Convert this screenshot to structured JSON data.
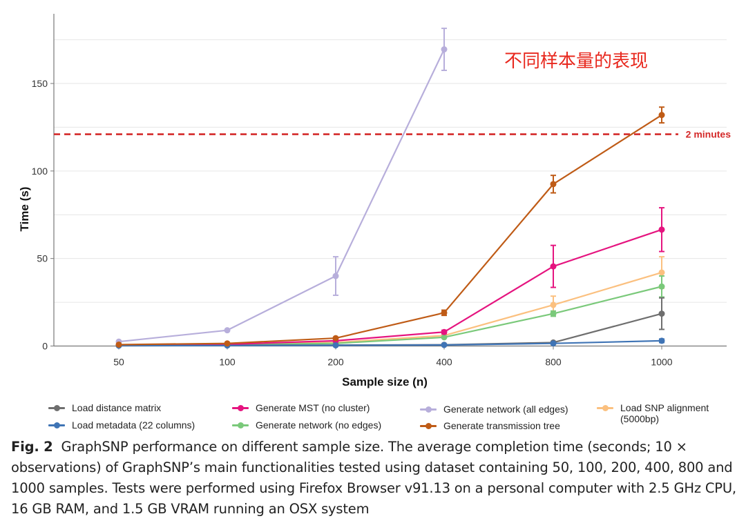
{
  "chart_data": {
    "type": "line",
    "title": "",
    "annotation": "不同样本量的表现",
    "xlabel": "Sample size (n)",
    "ylabel": "Time (s)",
    "categories": [
      "50",
      "100",
      "200",
      "400",
      "800",
      "1000"
    ],
    "ylim": [
      0,
      190
    ],
    "yticks": [
      0,
      50,
      100,
      150
    ],
    "reference_line": {
      "value": 121,
      "label": "2 minutes",
      "color": "#d42a2a"
    },
    "series": [
      {
        "name": "Load distance matrix",
        "color": "#6e6e6e",
        "values": [
          0.3,
          0.4,
          0.5,
          0.7,
          2,
          18.5
        ],
        "errors": [
          0.1,
          0.1,
          0.1,
          0.2,
          0.5,
          9
        ]
      },
      {
        "name": "Load metadata (22 columns)",
        "color": "#3f74b5",
        "values": [
          0.2,
          0.3,
          0.4,
          0.6,
          1.5,
          3
        ],
        "errors": [
          0.05,
          0.05,
          0.1,
          0.1,
          0.3,
          1
        ]
      },
      {
        "name": "Generate MST (no cluster)",
        "color": "#e5147f",
        "values": [
          0.5,
          1,
          3,
          8,
          45.5,
          66.5
        ],
        "errors": [
          0.1,
          0.2,
          0.5,
          1,
          12,
          12.5
        ]
      },
      {
        "name": "Generate network (no edges)",
        "color": "#7ac97a",
        "values": [
          0.4,
          0.8,
          1.5,
          5,
          18.5,
          34
        ],
        "errors": [
          0.1,
          0.1,
          0.3,
          0.5,
          1.5,
          6
        ]
      },
      {
        "name": "Generate network (all edges)",
        "color": "#b7aedb",
        "values": [
          2.5,
          9,
          40,
          169.5,
          null,
          null
        ],
        "errors": [
          0.3,
          0.8,
          11,
          12,
          null,
          null
        ]
      },
      {
        "name": "Generate transmission tree",
        "color": "#bf5b16",
        "values": [
          0.8,
          1.5,
          4.5,
          19,
          92.5,
          132
        ],
        "errors": [
          0.1,
          0.2,
          0.5,
          1.5,
          5,
          4.5
        ]
      },
      {
        "name": "Load SNP alignment (5000bp)",
        "color": "#fbc07f",
        "values": [
          0.5,
          1,
          2,
          6,
          23.5,
          42
        ],
        "errors": [
          0.1,
          0.1,
          0.3,
          0.5,
          5,
          9
        ]
      }
    ]
  },
  "legend": [
    {
      "label": "Load distance matrix",
      "color": "#6e6e6e"
    },
    {
      "label": "Load metadata (22 columns)",
      "color": "#3f74b5"
    },
    {
      "label": "Generate MST (no cluster)",
      "color": "#e5147f"
    },
    {
      "label": "Generate network (no edges)",
      "color": "#7ac97a"
    },
    {
      "label": "Generate network (all edges)",
      "color": "#b7aedb"
    },
    {
      "label": "Generate transmission tree",
      "color": "#bf5b16"
    },
    {
      "label": "Load SNP alignment (5000bp)",
      "color": "#fbc07f"
    }
  ],
  "caption": {
    "fig_label": "Fig. 2",
    "text": "GraphSNP performance on different sample size. The average completion time (seconds; 10 × observations) of GraphSNP’s main functionalities tested using dataset containing 50, 100, 200, 400, 800 and 1000 samples. Tests were performed using Firefox Browser v91.13 on a personal computer with 2.5 GHz CPU, 16 GB RAM, and 1.5 GB VRAM running an OSX system"
  }
}
